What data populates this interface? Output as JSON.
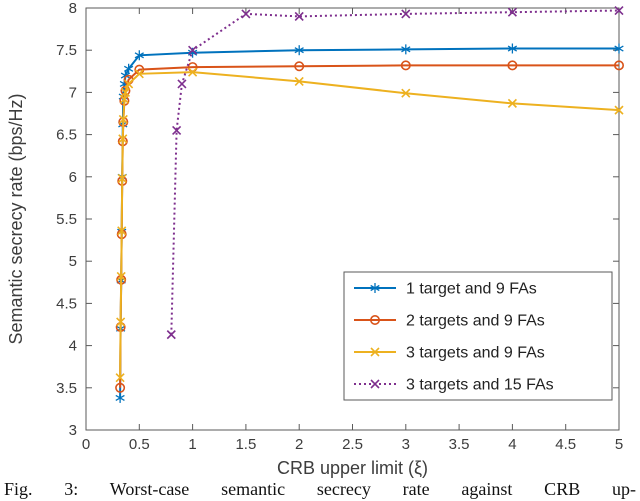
{
  "figure": {
    "caption": "Fig. 3: Worst-case semantic secrecy rate against CRB up-"
  },
  "chart_data": {
    "type": "line",
    "title": "",
    "xlabel": "CRB upper limit (ξ)",
    "ylabel": "Semantic secrecy rate (bps/Hz)",
    "xlim": [
      0,
      5
    ],
    "ylim": [
      3,
      8
    ],
    "xticks": [
      0,
      0.5,
      1,
      1.5,
      2,
      2.5,
      3,
      3.5,
      4,
      4.5,
      5
    ],
    "yticks": [
      3,
      3.5,
      4,
      4.5,
      5,
      5.5,
      6,
      6.5,
      7,
      7.5,
      8
    ],
    "grid": false,
    "legend_position": "southeast-inside",
    "series": [
      {
        "name": "1 target and 9 FAs",
        "color": "#0072BD",
        "line_style": "solid",
        "marker": "asterisk",
        "points": [
          [
            0.32,
            3.38
          ],
          [
            0.325,
            4.2
          ],
          [
            0.33,
            4.77
          ],
          [
            0.335,
            5.35
          ],
          [
            0.34,
            6.0
          ],
          [
            0.345,
            6.62
          ],
          [
            0.35,
            6.95
          ],
          [
            0.36,
            7.1
          ],
          [
            0.37,
            7.2
          ],
          [
            0.4,
            7.28
          ],
          [
            0.5,
            7.44
          ],
          [
            1,
            7.47
          ],
          [
            2,
            7.5
          ],
          [
            3,
            7.51
          ],
          [
            4,
            7.52
          ],
          [
            5,
            7.52
          ]
        ]
      },
      {
        "name": "2 targets and 9 FAs",
        "color": "#D95319",
        "line_style": "solid",
        "marker": "circle",
        "points": [
          [
            0.32,
            3.5
          ],
          [
            0.325,
            4.22
          ],
          [
            0.33,
            4.78
          ],
          [
            0.335,
            5.32
          ],
          [
            0.34,
            5.95
          ],
          [
            0.345,
            6.42
          ],
          [
            0.35,
            6.65
          ],
          [
            0.36,
            6.9
          ],
          [
            0.37,
            7.02
          ],
          [
            0.4,
            7.15
          ],
          [
            0.5,
            7.27
          ],
          [
            1,
            7.3
          ],
          [
            2,
            7.31
          ],
          [
            3,
            7.32
          ],
          [
            4,
            7.32
          ],
          [
            5,
            7.32
          ]
        ]
      },
      {
        "name": "3 targets and 9 FAs",
        "color": "#EDB120",
        "line_style": "solid",
        "marker": "x",
        "points": [
          [
            0.32,
            3.62
          ],
          [
            0.325,
            4.28
          ],
          [
            0.33,
            4.82
          ],
          [
            0.335,
            5.36
          ],
          [
            0.34,
            5.98
          ],
          [
            0.345,
            6.45
          ],
          [
            0.35,
            6.68
          ],
          [
            0.36,
            6.92
          ],
          [
            0.37,
            7.0
          ],
          [
            0.4,
            7.1
          ],
          [
            0.5,
            7.22
          ],
          [
            1,
            7.24
          ],
          [
            2,
            7.13
          ],
          [
            3,
            6.99
          ],
          [
            4,
            6.87
          ],
          [
            5,
            6.79
          ]
        ]
      },
      {
        "name": "3 targets and 15 FAs",
        "color": "#7E2F8E",
        "line_style": "dotted",
        "marker": "x",
        "points": [
          [
            0.8,
            4.13
          ],
          [
            0.85,
            6.55
          ],
          [
            0.9,
            7.1
          ],
          [
            1,
            7.5
          ],
          [
            1.5,
            7.93
          ],
          [
            2,
            7.9
          ],
          [
            3,
            7.93
          ],
          [
            4,
            7.95
          ],
          [
            5,
            7.97
          ]
        ]
      }
    ]
  }
}
